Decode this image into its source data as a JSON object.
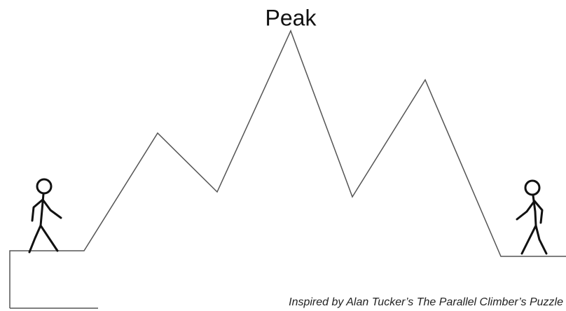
{
  "peak_label": "Peak",
  "caption": "Inspired by Alan Tucker’s The Parallel Climber’s Puzzle"
}
